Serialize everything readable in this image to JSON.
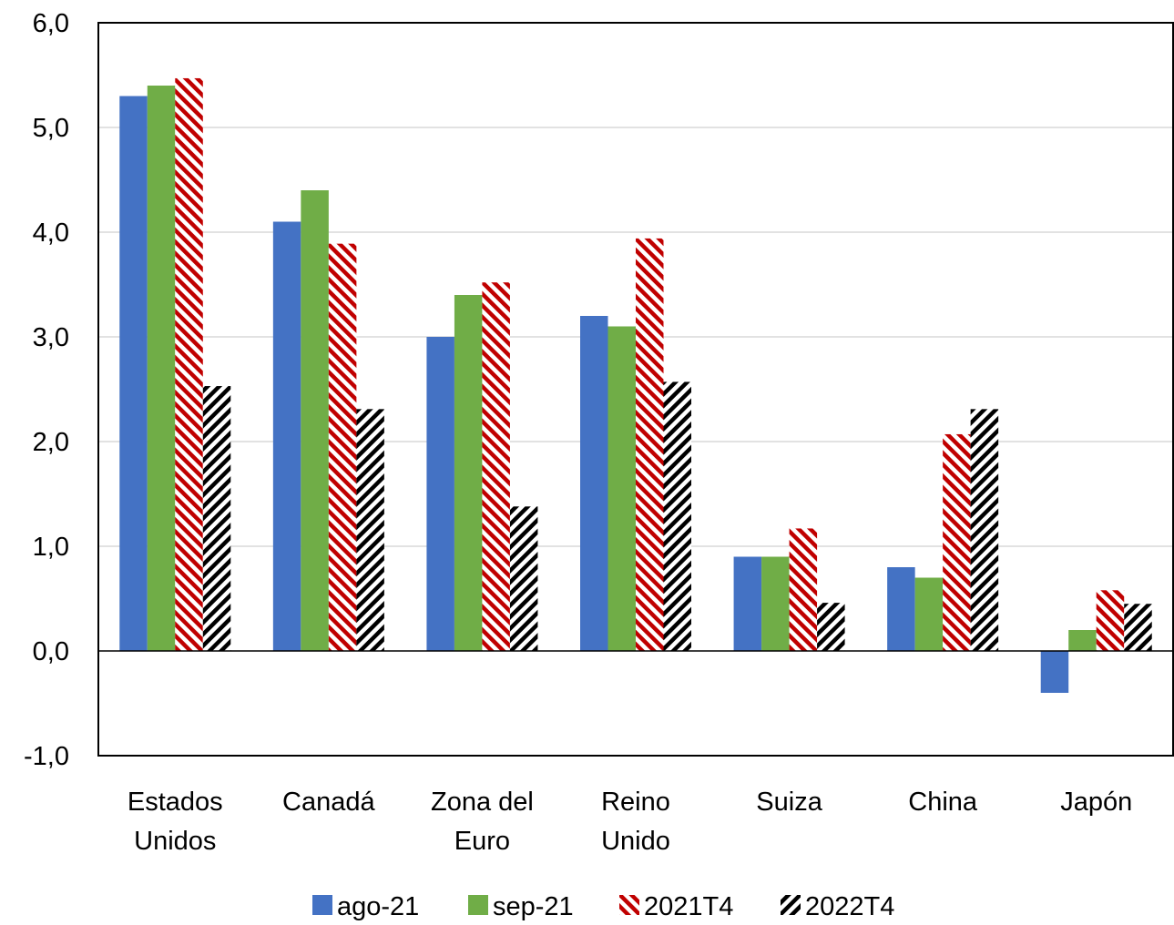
{
  "chart_data": {
    "type": "bar",
    "title": "",
    "xlabel": "",
    "ylabel": "",
    "ylim": [
      -1.0,
      6.0
    ],
    "yticks": [
      "-1,0",
      "0,0",
      "1,0",
      "2,0",
      "3,0",
      "4,0",
      "5,0",
      "6,0"
    ],
    "grid": true,
    "legend_position": "bottom",
    "categories": [
      [
        "Estados",
        "Unidos"
      ],
      [
        "Canadá"
      ],
      [
        "Zona del",
        "Euro"
      ],
      [
        "Reino",
        "Unido"
      ],
      [
        "Suiza"
      ],
      [
        "China"
      ],
      [
        "Japón"
      ]
    ],
    "series": [
      {
        "name": "ago-21",
        "color": "#4472C4",
        "pattern": "solid",
        "values": [
          5.3,
          4.1,
          3.0,
          3.2,
          0.9,
          0.8,
          -0.4
        ]
      },
      {
        "name": "sep-21",
        "color": "#70AD47",
        "pattern": "solid",
        "values": [
          5.4,
          4.4,
          3.4,
          3.1,
          0.9,
          0.7,
          0.2
        ]
      },
      {
        "name": "2021T4",
        "color": "#C00000",
        "pattern": "diagonal-stripes",
        "values": [
          5.47,
          3.89,
          3.52,
          3.94,
          1.17,
          2.07,
          0.58
        ]
      },
      {
        "name": "2022T4",
        "color": "#000000",
        "pattern": "diagonal-stripes-alt",
        "values": [
          2.53,
          2.31,
          1.38,
          2.57,
          0.46,
          2.31,
          0.45
        ]
      }
    ]
  }
}
